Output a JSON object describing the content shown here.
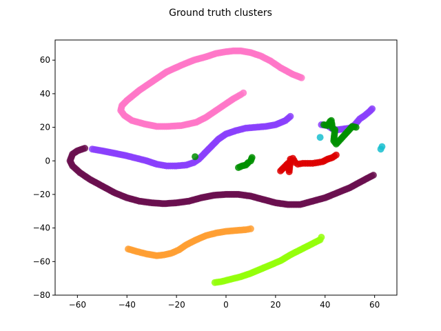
{
  "chart_data": {
    "type": "scatter",
    "title": "Ground truth clusters",
    "xlabel": "",
    "ylabel": "",
    "xlim": [
      -69,
      69
    ],
    "ylim": [
      -80,
      72
    ],
    "x_ticks": [
      -60,
      -40,
      -20,
      0,
      20,
      40,
      60
    ],
    "y_ticks": [
      -80,
      -60,
      -40,
      -20,
      0,
      20,
      40,
      60
    ],
    "grid": false,
    "legend": "none",
    "series": [
      {
        "color": "#ff77c8",
        "x": [
          30.5,
          27,
          22,
          18,
          14,
          10,
          6,
          3,
          0,
          -4,
          -8,
          -13,
          -18,
          -24,
          -30,
          -35,
          -40,
          -42,
          -42.5,
          -41,
          -38,
          -33,
          -28,
          -24,
          -18,
          -12,
          -8,
          -4,
          0,
          3,
          6,
          7
        ],
        "y": [
          49.5,
          51.5,
          55.5,
          59.5,
          62.5,
          64.5,
          65.5,
          65.5,
          65,
          64,
          62,
          60,
          57,
          53,
          47,
          42,
          36,
          33,
          30,
          27,
          24,
          22,
          20.5,
          20.5,
          21,
          23,
          26,
          30,
          34,
          37,
          39.5,
          40.5
        ]
      },
      {
        "color": "#8a3ffc",
        "x": [
          -54,
          -50,
          -45,
          -40,
          -36,
          -32,
          -28,
          -24,
          -20,
          -16,
          -13,
          -11,
          -9,
          -6,
          -3,
          0,
          4,
          8,
          12,
          16,
          20,
          24,
          26
        ],
        "y": [
          7,
          6,
          4.5,
          3,
          1.5,
          0,
          -2,
          -3,
          -3,
          -2.5,
          -1,
          1,
          4,
          8.5,
          13,
          16,
          18,
          19.5,
          20,
          20.5,
          21.5,
          24,
          26.5
        ]
      },
      {
        "color": "#8a3ffc",
        "x": [
          38.5,
          41,
          43,
          45,
          50,
          52,
          54,
          56,
          58,
          59
        ],
        "y": [
          21.5,
          21,
          19,
          18.5,
          19.5,
          21.5,
          25,
          27,
          29.5,
          31
        ]
      },
      {
        "color": "#6a0f4f",
        "x": [
          -57,
          -60,
          -62,
          -63,
          -62,
          -59,
          -55,
          -50,
          -45,
          -40,
          -35,
          -30,
          -25,
          -20,
          -15,
          -10,
          -5,
          0,
          5,
          10,
          15,
          20,
          25,
          30,
          35,
          40,
          45,
          50,
          55,
          59.5
        ],
        "y": [
          7.5,
          6,
          4,
          0,
          -3,
          -7,
          -11,
          -15,
          -19,
          -22,
          -24,
          -25,
          -25.5,
          -25,
          -24,
          -22,
          -20.5,
          -20,
          -20,
          -21,
          -23,
          -25,
          -26,
          -26,
          -24,
          -22,
          -19,
          -16,
          -12,
          -8.5
        ]
      },
      {
        "color": "#ff9f33",
        "x": [
          -39.5,
          -36,
          -32,
          -28,
          -25,
          -22,
          -19,
          -16,
          -12,
          -8,
          -4,
          0,
          4,
          8,
          10
        ],
        "y": [
          -52.5,
          -54,
          -55.5,
          -56.5,
          -56,
          -55,
          -53,
          -50,
          -47,
          -44.5,
          -43,
          -42,
          -41.5,
          -41,
          -40.5
        ]
      },
      {
        "color": "#94ff0a",
        "x": [
          -4.5,
          -2,
          2,
          6,
          10,
          14,
          18,
          22,
          26,
          30,
          34,
          38,
          38.5
        ],
        "y": [
          -72.5,
          -72,
          -70.5,
          -69,
          -67,
          -64.5,
          -62,
          -59.5,
          -56,
          -53,
          -50,
          -47,
          -45.5
        ]
      },
      {
        "color": "#dd0000",
        "x": [
          22,
          23,
          24,
          25,
          25.5,
          26,
          27,
          28,
          29,
          31,
          33,
          35,
          37,
          39,
          41,
          43,
          44.5
        ],
        "y": [
          -6,
          -4.5,
          -3,
          -1.5,
          -6.5,
          1,
          1.5,
          -1,
          -2,
          -1.5,
          -1.5,
          -1.5,
          -1,
          -0.5,
          1,
          2,
          3.5
        ]
      },
      {
        "color": "#008f00",
        "x": [
          -12.5,
          5,
          6.5,
          8,
          9,
          10,
          10.5,
          39.5,
          41,
          42,
          42.5,
          43,
          44,
          43.5,
          44.5,
          51,
          52.5
        ],
        "y": [
          2.5,
          -4,
          -3,
          -2.5,
          -1,
          0,
          2,
          21.5,
          21,
          23.5,
          24,
          19.5,
          18.5,
          12,
          10,
          20.5,
          20
        ]
      },
      {
        "color": "#17becf",
        "x": [
          38,
          62.5,
          63
        ],
        "y": [
          14,
          7,
          8.5
        ]
      }
    ]
  }
}
